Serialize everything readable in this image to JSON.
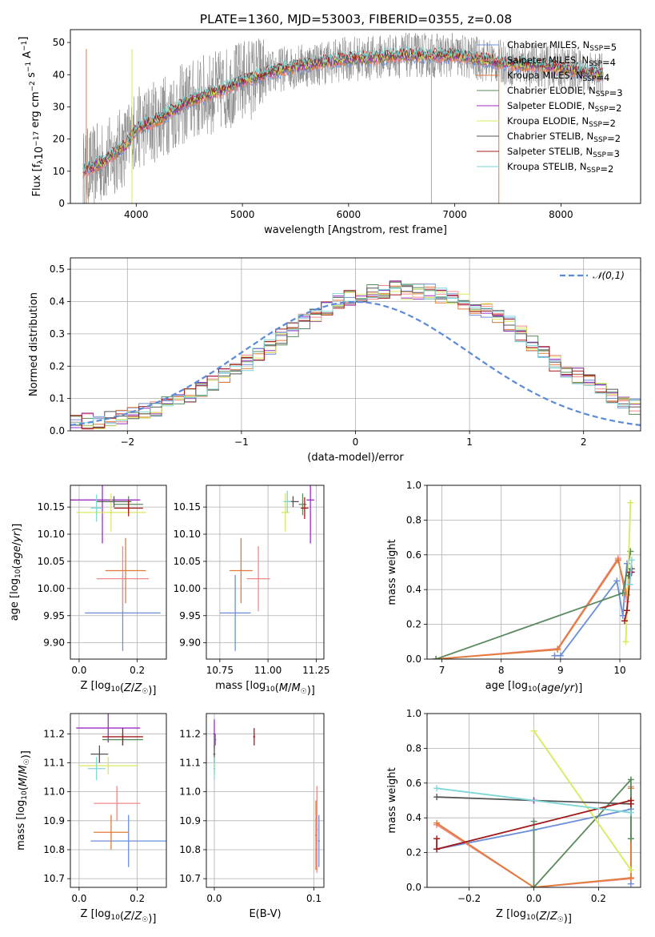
{
  "page_title": "PLATE=1360, MJD=53003, FIBERID=0355, z=0.08",
  "model_colors": {
    "Chabrier MILES": "#6a8fd8",
    "Salpeter MILES": "#f08a8a",
    "Kroupa MILES": "#e07b39",
    "Chabrier ELODIE": "#5b8a5f",
    "Salpeter ELODIE": "#9b2fc0",
    "Kroupa ELODIE": "#d9e85c",
    "Chabrier STELIB": "#555555",
    "Salpeter STELIB": "#a31c1c",
    "Kroupa STELIB": "#7fd6d6"
  },
  "chart_data": [
    {
      "id": "spectrum",
      "type": "line",
      "title": "",
      "xlabel": "wavelength [Angstrom, rest frame]",
      "ylabel": "Flux [f_λ 10^-17 erg cm^-2 s^-1 A^-1]",
      "xlim": [
        3380,
        8750
      ],
      "ylim": [
        0,
        54
      ],
      "xticks": [
        4000,
        5000,
        6000,
        7000,
        8000
      ],
      "yticks": [
        0,
        10,
        20,
        30,
        40,
        50
      ],
      "legend_position": "right",
      "legend": [
        {
          "label": "Chabrier MILES, N_SSP=5",
          "model": "Chabrier MILES"
        },
        {
          "label": "Salpeter MILES, N_SSP=4",
          "model": "Salpeter MILES"
        },
        {
          "label": "Kroupa MILES, N_SSP=4",
          "model": "Kroupa MILES"
        },
        {
          "label": "Chabrier ELODIE, N_SSP=3",
          "model": "Chabrier ELODIE"
        },
        {
          "label": "Salpeter ELODIE, N_SSP=2",
          "model": "Salpeter ELODIE"
        },
        {
          "label": "Kroupa ELODIE, N_SSP=2",
          "model": "Kroupa ELODIE"
        },
        {
          "label": "Chabrier STELIB, N_SSP=2",
          "model": "Chabrier STELIB"
        },
        {
          "label": "Salpeter STELIB, N_SSP=3",
          "model": "Salpeter STELIB"
        },
        {
          "label": "Kroupa STELIB, N_SSP=2",
          "model": "Kroupa STELIB"
        }
      ],
      "data_color": "#7f7f7f",
      "continuum": {
        "x": [
          3500,
          3700,
          3900,
          4000,
          4200,
          4400,
          4600,
          4800,
          5000,
          5200,
          5400,
          5600,
          5800,
          6000,
          6200,
          6400,
          6600,
          6800,
          7000,
          7200,
          7400,
          7600,
          7800,
          8000,
          8200,
          8400
        ],
        "y": [
          10,
          13,
          18,
          23,
          26,
          30,
          33,
          35,
          38,
          40,
          42,
          43,
          44,
          45,
          45,
          46,
          46,
          46,
          46,
          45,
          44,
          43,
          43,
          42,
          41,
          40
        ]
      }
    },
    {
      "id": "residuals",
      "type": "histogram",
      "xlabel": "(data-model)/error",
      "ylabel": "Normed distribution",
      "xlim": [
        -2.5,
        2.5
      ],
      "ylim": [
        0,
        0.535
      ],
      "xticks": [
        -2,
        -1,
        0,
        1,
        2
      ],
      "yticks": [
        0.0,
        0.1,
        0.2,
        0.3,
        0.4,
        0.5
      ],
      "legend_position": "top-right",
      "reference_label": "𝒩(0,1)",
      "reference_color": "#5b8ad8",
      "bin_width": 0.1,
      "bin_start": -2.5,
      "base_density": [
        0.03,
        0.03,
        0.03,
        0.035,
        0.04,
        0.05,
        0.06,
        0.07,
        0.085,
        0.095,
        0.11,
        0.13,
        0.15,
        0.17,
        0.19,
        0.21,
        0.24,
        0.26,
        0.29,
        0.31,
        0.34,
        0.36,
        0.38,
        0.4,
        0.41,
        0.42,
        0.43,
        0.435,
        0.44,
        0.43,
        0.43,
        0.43,
        0.42,
        0.41,
        0.4,
        0.38,
        0.37,
        0.35,
        0.33,
        0.3,
        0.27,
        0.24,
        0.21,
        0.19,
        0.17,
        0.15,
        0.13,
        0.11,
        0.09,
        0.075,
        0.06,
        0.05,
        0.04,
        0.03,
        0.025,
        0.02,
        0.02,
        0.015,
        0.01,
        0.01
      ]
    },
    {
      "id": "age-vs-Z",
      "type": "scatter",
      "xlabel": "Z [log10(Z/Z☉)]",
      "ylabel": "age  [log10(age/yr)]",
      "xlim": [
        -0.03,
        0.3
      ],
      "ylim": [
        9.87,
        10.19
      ],
      "xticks": [
        0.0,
        0.2
      ],
      "yticks": [
        9.9,
        9.95,
        10.0,
        10.05,
        10.1,
        10.15
      ],
      "points": [
        {
          "model": "Chabrier MILES",
          "x": 0.15,
          "xerr": 0.13,
          "y": 9.955,
          "yerr": 0.07
        },
        {
          "model": "Salpeter MILES",
          "x": 0.15,
          "xerr": 0.09,
          "y": 10.018,
          "yerr": 0.06
        },
        {
          "model": "Kroupa MILES",
          "x": 0.16,
          "xerr": 0.07,
          "y": 10.033,
          "yerr": 0.06
        },
        {
          "model": "Chabrier ELODIE",
          "x": 0.17,
          "xerr": 0.05,
          "y": 10.155,
          "yerr": 0.015
        },
        {
          "model": "Salpeter ELODIE",
          "x": 0.08,
          "xerr": 0.13,
          "y": 10.163,
          "yerr": 0.08
        },
        {
          "model": "Kroupa ELODIE",
          "x": 0.11,
          "xerr": 0.12,
          "y": 10.14,
          "yerr": 0.035
        },
        {
          "model": "Chabrier STELIB",
          "x": 0.12,
          "xerr": 0.06,
          "y": 10.16,
          "yerr": 0.01
        },
        {
          "model": "Salpeter STELIB",
          "x": 0.17,
          "xerr": 0.05,
          "y": 10.148,
          "yerr": 0.015
        },
        {
          "model": "Kroupa STELIB",
          "x": 0.06,
          "xerr": 0.02,
          "y": 10.148,
          "yerr": 0.025
        }
      ]
    },
    {
      "id": "age-vs-mass",
      "type": "scatter",
      "xlabel": "mass [log10(M/M☉)]",
      "ylabel": "",
      "xlim": [
        10.68,
        11.29
      ],
      "ylim": [
        9.87,
        10.19
      ],
      "xticks": [
        10.75,
        11.0,
        11.25
      ],
      "yticks": [
        9.9,
        9.95,
        10.0,
        10.05,
        10.1,
        10.15
      ],
      "points": [
        {
          "model": "Chabrier MILES",
          "x": 10.83,
          "xerr": 0.08,
          "y": 9.955,
          "yerr": 0.07
        },
        {
          "model": "Salpeter MILES",
          "x": 10.95,
          "xerr": 0.06,
          "y": 10.018,
          "yerr": 0.06
        },
        {
          "model": "Kroupa MILES",
          "x": 10.86,
          "xerr": 0.06,
          "y": 10.033,
          "yerr": 0.06
        },
        {
          "model": "Chabrier ELODIE",
          "x": 11.18,
          "xerr": 0.02,
          "y": 10.155,
          "yerr": 0.02
        },
        {
          "model": "Salpeter ELODIE",
          "x": 11.22,
          "xerr": 0.02,
          "y": 10.163,
          "yerr": 0.08
        },
        {
          "model": "Kroupa ELODIE",
          "x": 11.09,
          "xerr": 0.02,
          "y": 10.14,
          "yerr": 0.035
        },
        {
          "model": "Chabrier STELIB",
          "x": 11.13,
          "xerr": 0.03,
          "y": 10.16,
          "yerr": 0.01
        },
        {
          "model": "Salpeter STELIB",
          "x": 11.19,
          "xerr": 0.02,
          "y": 10.148,
          "yerr": 0.02
        },
        {
          "model": "Kroupa STELIB",
          "x": 11.1,
          "xerr": 0.02,
          "y": 10.16,
          "yerr": 0.02
        }
      ]
    },
    {
      "id": "weight-vs-age",
      "type": "line",
      "xlabel": "age  [log10(age/yr)]",
      "ylabel": "mass weight",
      "xlim": [
        6.75,
        10.35
      ],
      "ylim": [
        0,
        1
      ],
      "xticks": [
        7,
        8,
        9,
        10
      ],
      "yticks": [
        0.0,
        0.2,
        0.4,
        0.6,
        0.8,
        1.0
      ],
      "series": [
        {
          "model": "Chabrier MILES",
          "x": [
            8.9,
            9.0,
            9.95,
            10.05,
            10.12
          ],
          "y": [
            0.02,
            0.02,
            0.45,
            0.25,
            0.55
          ]
        },
        {
          "model": "Salpeter MILES",
          "x": [
            6.9,
            8.95,
            9.97,
            10.12
          ],
          "y": [
            0.0,
            0.06,
            0.58,
            0.33
          ]
        },
        {
          "model": "Kroupa MILES",
          "x": [
            6.9,
            8.95,
            9.97,
            10.12
          ],
          "y": [
            0.0,
            0.055,
            0.57,
            0.37
          ]
        },
        {
          "model": "Chabrier ELODIE",
          "x": [
            6.9,
            10.05,
            10.18
          ],
          "y": [
            0.0,
            0.38,
            0.62
          ]
        },
        {
          "model": "Salpeter ELODIE",
          "x": [
            10.17,
            10.2
          ],
          "y": [
            0.5,
            0.5
          ]
        },
        {
          "model": "Kroupa ELODIE",
          "x": [
            10.1,
            10.18
          ],
          "y": [
            0.1,
            0.9
          ]
        },
        {
          "model": "Chabrier STELIB",
          "x": [
            10.15,
            10.2
          ],
          "y": [
            0.48,
            0.52
          ]
        },
        {
          "model": "Salpeter STELIB",
          "x": [
            10.08,
            10.12,
            10.18
          ],
          "y": [
            0.22,
            0.28,
            0.5
          ]
        },
        {
          "model": "Kroupa STELIB",
          "x": [
            10.17,
            10.2
          ],
          "y": [
            0.43,
            0.57
          ]
        }
      ]
    },
    {
      "id": "mass-vs-Z",
      "type": "scatter",
      "xlabel": "Z [log10(Z/Z☉)]",
      "ylabel": "mass [log10(M/M☉)]",
      "xlim": [
        -0.03,
        0.3
      ],
      "ylim": [
        10.67,
        11.27
      ],
      "xticks": [
        0.0,
        0.2
      ],
      "yticks": [
        10.7,
        10.8,
        10.9,
        11.0,
        11.1,
        11.2
      ],
      "points": [
        {
          "model": "Chabrier MILES",
          "x": 0.17,
          "xerr": 0.13,
          "y": 10.83,
          "yerr": 0.09
        },
        {
          "model": "Salpeter MILES",
          "x": 0.13,
          "xerr": 0.08,
          "y": 10.96,
          "yerr": 0.06
        },
        {
          "model": "Kroupa MILES",
          "x": 0.11,
          "xerr": 0.06,
          "y": 10.86,
          "yerr": 0.06
        },
        {
          "model": "Chabrier ELODIE",
          "x": 0.15,
          "xerr": 0.07,
          "y": 11.18,
          "yerr": 0.02
        },
        {
          "model": "Salpeter ELODIE",
          "x": 0.1,
          "xerr": 0.11,
          "y": 11.22,
          "yerr": 0.05
        },
        {
          "model": "Kroupa ELODIE",
          "x": 0.1,
          "xerr": 0.1,
          "y": 11.09,
          "yerr": 0.03
        },
        {
          "model": "Chabrier STELIB",
          "x": 0.07,
          "xerr": 0.03,
          "y": 11.13,
          "yerr": 0.03
        },
        {
          "model": "Salpeter STELIB",
          "x": 0.15,
          "xerr": 0.07,
          "y": 11.19,
          "yerr": 0.03
        },
        {
          "model": "Kroupa STELIB",
          "x": 0.06,
          "xerr": 0.03,
          "y": 11.08,
          "yerr": 0.04
        }
      ]
    },
    {
      "id": "mass-vs-EBV",
      "type": "scatter",
      "xlabel": "E(B-V)",
      "ylabel": "",
      "xlim": [
        -0.008,
        0.11
      ],
      "ylim": [
        10.67,
        11.27
      ],
      "xticks": [
        0.0,
        0.1
      ],
      "yticks": [
        10.7,
        10.8,
        10.9,
        11.0,
        11.1,
        11.2
      ],
      "points": [
        {
          "model": "Chabrier MILES",
          "x": 0.105,
          "xerr": 0.001,
          "y": 10.83,
          "yerr": 0.09
        },
        {
          "model": "Salpeter MILES",
          "x": 0.103,
          "xerr": 0.001,
          "y": 10.87,
          "yerr": 0.15
        },
        {
          "model": "Kroupa MILES",
          "x": 0.102,
          "xerr": 0.001,
          "y": 10.85,
          "yerr": 0.12
        },
        {
          "model": "Chabrier ELODIE",
          "x": 0.001,
          "xerr": 0.001,
          "y": 11.18,
          "yerr": 0.02
        },
        {
          "model": "Salpeter ELODIE",
          "x": 0.0,
          "xerr": 0.001,
          "y": 11.2,
          "yerr": 0.05
        },
        {
          "model": "Kroupa ELODIE",
          "x": 0.0,
          "xerr": 0.001,
          "y": 11.09,
          "yerr": 0.03
        },
        {
          "model": "Chabrier STELIB",
          "x": 0.0,
          "xerr": 0.001,
          "y": 11.13,
          "yerr": 0.03
        },
        {
          "model": "Salpeter STELIB",
          "x": 0.04,
          "xerr": 0.001,
          "y": 11.19,
          "yerr": 0.03
        },
        {
          "model": "Kroupa STELIB",
          "x": 0.0,
          "xerr": 0.001,
          "y": 11.08,
          "yerr": 0.04
        }
      ]
    },
    {
      "id": "weight-vs-Z",
      "type": "line",
      "xlabel": "Z [log10(Z/Z☉)]",
      "ylabel": "mass weight",
      "xlim": [
        -0.33,
        0.33
      ],
      "ylim": [
        0,
        1
      ],
      "xticks": [
        -0.2,
        0.0,
        0.2
      ],
      "yticks": [
        0.0,
        0.2,
        0.4,
        0.6,
        0.8,
        1.0
      ],
      "series": [
        {
          "model": "Chabrier MILES",
          "x": [
            -0.3,
            0.0,
            0.3,
            0.3
          ],
          "y": [
            0.22,
            0.33,
            0.45,
            0.02
          ]
        },
        {
          "model": "Salpeter MILES",
          "x": [
            -0.3,
            0.0,
            0.3,
            0.3
          ],
          "y": [
            0.36,
            0.0,
            0.05,
            0.58
          ]
        },
        {
          "model": "Kroupa MILES",
          "x": [
            -0.3,
            0.0,
            0.3,
            0.3
          ],
          "y": [
            0.37,
            0.0,
            0.055,
            0.57
          ]
        },
        {
          "model": "Chabrier ELODIE",
          "x": [
            0.0,
            0.0,
            0.3,
            0.3
          ],
          "y": [
            0.38,
            0.0,
            0.62,
            0.28
          ]
        },
        {
          "model": "Salpeter ELODIE",
          "x": [
            0.0,
            0.0
          ],
          "y": [
            0.5,
            0.5
          ]
        },
        {
          "model": "Kroupa ELODIE",
          "x": [
            0.0,
            0.3
          ],
          "y": [
            0.9,
            0.1
          ]
        },
        {
          "model": "Chabrier STELIB",
          "x": [
            -0.3,
            0.3
          ],
          "y": [
            0.52,
            0.48
          ]
        },
        {
          "model": "Salpeter STELIB",
          "x": [
            -0.3,
            -0.3,
            0.3,
            0.3
          ],
          "y": [
            0.28,
            0.22,
            0.5,
            0.48
          ]
        },
        {
          "model": "Kroupa STELIB",
          "x": [
            -0.3,
            0.3
          ],
          "y": [
            0.57,
            0.43
          ]
        }
      ]
    }
  ]
}
